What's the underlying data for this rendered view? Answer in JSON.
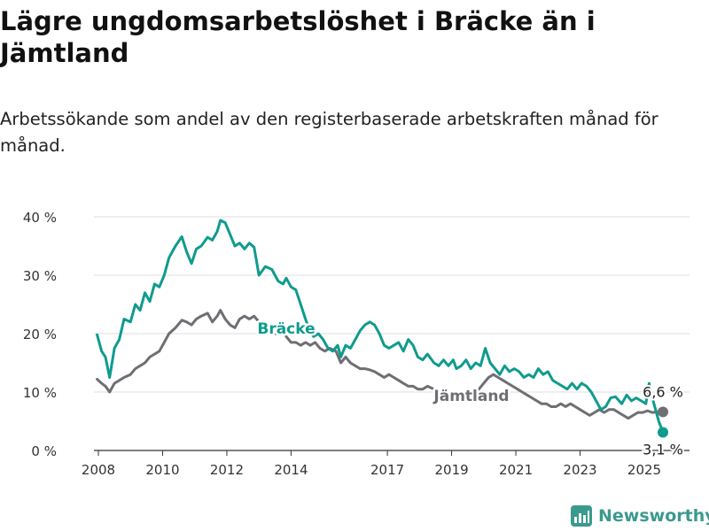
{
  "title": "Lägre ungdomsarbetslöshet i Bräcke än i Jämtland",
  "subtitle": "Arbetssökande som andel av den registerbaserade arbetskraften månad för månad.",
  "brand": {
    "name": "Newsworthy",
    "color": "#3a9a8e",
    "icon": "newsworthy-logo-icon"
  },
  "chart_data": {
    "type": "line",
    "title": "Lägre ungdomsarbetslöshet i Bräcke än i Jämtland",
    "xlabel": "",
    "ylabel": "",
    "xlim": [
      2007.7,
      2025.9
    ],
    "ylim": [
      0,
      40
    ],
    "grid": true,
    "x_ticks": [
      2008,
      2010,
      2012,
      2014,
      2017,
      2019,
      2021,
      2023,
      2025
    ],
    "x_tick_labels": [
      "2008",
      "2010",
      "2012",
      "2014",
      "2017",
      "2019",
      "2021",
      "2023",
      "2025"
    ],
    "y_ticks": [
      0,
      10,
      20,
      30,
      40
    ],
    "y_tick_labels": [
      "0 %",
      "10 %",
      "20 %",
      "30 %",
      "40 %"
    ],
    "series": [
      {
        "name": "Bräcke",
        "color": "#0f9b8e",
        "end_label": "3,1 %",
        "points": [
          [
            2007.96,
            19.8
          ],
          [
            2008.1,
            17
          ],
          [
            2008.22,
            16
          ],
          [
            2008.35,
            12.5
          ],
          [
            2008.5,
            17.5
          ],
          [
            2008.65,
            19
          ],
          [
            2008.8,
            22.5
          ],
          [
            2009.0,
            22
          ],
          [
            2009.15,
            25
          ],
          [
            2009.3,
            24
          ],
          [
            2009.45,
            27
          ],
          [
            2009.6,
            25.5
          ],
          [
            2009.75,
            28.5
          ],
          [
            2009.9,
            28
          ],
          [
            2010.05,
            30
          ],
          [
            2010.2,
            33
          ],
          [
            2010.4,
            35
          ],
          [
            2010.6,
            36.6
          ],
          [
            2010.75,
            34
          ],
          [
            2010.9,
            32
          ],
          [
            2011.05,
            34.5
          ],
          [
            2011.2,
            35
          ],
          [
            2011.4,
            36.5
          ],
          [
            2011.55,
            36
          ],
          [
            2011.7,
            37.5
          ],
          [
            2011.8,
            39.4
          ],
          [
            2011.95,
            39
          ],
          [
            2012.1,
            37
          ],
          [
            2012.25,
            35
          ],
          [
            2012.4,
            35.5
          ],
          [
            2012.55,
            34.5
          ],
          [
            2012.7,
            35.5
          ],
          [
            2012.85,
            34.8
          ],
          [
            2013.0,
            30
          ],
          [
            2013.2,
            31.5
          ],
          [
            2013.4,
            31
          ],
          [
            2013.6,
            29
          ],
          [
            2013.75,
            28.5
          ],
          [
            2013.85,
            29.5
          ],
          [
            2014.0,
            28
          ],
          [
            2014.15,
            27.5
          ],
          [
            2014.3,
            25
          ],
          [
            2014.45,
            22.5
          ],
          [
            2014.55,
            21
          ],
          [
            2014.7,
            19.5
          ],
          [
            2014.85,
            20
          ],
          [
            2015.0,
            19
          ],
          [
            2015.15,
            17.5
          ],
          [
            2015.3,
            17
          ],
          [
            2015.45,
            18
          ],
          [
            2015.55,
            16
          ],
          [
            2015.7,
            18
          ],
          [
            2015.85,
            17.5
          ],
          [
            2016.0,
            19
          ],
          [
            2016.15,
            20.5
          ],
          [
            2016.3,
            21.5
          ],
          [
            2016.45,
            22
          ],
          [
            2016.6,
            21.5
          ],
          [
            2016.75,
            20
          ],
          [
            2016.9,
            18
          ],
          [
            2017.05,
            17.5
          ],
          [
            2017.2,
            18
          ],
          [
            2017.35,
            18.5
          ],
          [
            2017.5,
            17
          ],
          [
            2017.65,
            19
          ],
          [
            2017.8,
            18
          ],
          [
            2017.95,
            16
          ],
          [
            2018.1,
            15.5
          ],
          [
            2018.25,
            16.5
          ],
          [
            2018.45,
            15
          ],
          [
            2018.6,
            14.5
          ],
          [
            2018.75,
            15.5
          ],
          [
            2018.9,
            14.5
          ],
          [
            2019.05,
            15.5
          ],
          [
            2019.15,
            14
          ],
          [
            2019.3,
            14.5
          ],
          [
            2019.45,
            15.5
          ],
          [
            2019.6,
            14
          ],
          [
            2019.75,
            15
          ],
          [
            2019.9,
            14.5
          ],
          [
            2020.05,
            17.5
          ],
          [
            2020.2,
            15
          ],
          [
            2020.35,
            14
          ],
          [
            2020.5,
            13
          ],
          [
            2020.65,
            14.5
          ],
          [
            2020.8,
            13.5
          ],
          [
            2020.95,
            14
          ],
          [
            2021.1,
            13.5
          ],
          [
            2021.25,
            12.5
          ],
          [
            2021.4,
            13
          ],
          [
            2021.55,
            12.5
          ],
          [
            2021.7,
            14
          ],
          [
            2021.85,
            13
          ],
          [
            2022.0,
            13.5
          ],
          [
            2022.15,
            12
          ],
          [
            2022.3,
            11.5
          ],
          [
            2022.45,
            11
          ],
          [
            2022.6,
            10.5
          ],
          [
            2022.75,
            11.5
          ],
          [
            2022.9,
            10.5
          ],
          [
            2023.05,
            11.5
          ],
          [
            2023.2,
            11
          ],
          [
            2023.35,
            10
          ],
          [
            2023.5,
            8.5
          ],
          [
            2023.65,
            7
          ],
          [
            2023.8,
            7.5
          ],
          [
            2023.95,
            9
          ],
          [
            2024.1,
            9.2
          ],
          [
            2024.3,
            8
          ],
          [
            2024.45,
            9.5
          ],
          [
            2024.6,
            8.5
          ],
          [
            2024.75,
            9
          ],
          [
            2024.9,
            8.5
          ],
          [
            2025.05,
            8
          ],
          [
            2025.15,
            11.5
          ],
          [
            2025.25,
            9
          ],
          [
            2025.35,
            7
          ],
          [
            2025.45,
            5
          ],
          [
            2025.58,
            3.1
          ]
        ]
      },
      {
        "name": "Jämtland",
        "color": "#6e6e73",
        "end_label": "6,6 %",
        "points": [
          [
            2007.96,
            12.2
          ],
          [
            2008.1,
            11.5
          ],
          [
            2008.22,
            11
          ],
          [
            2008.35,
            10
          ],
          [
            2008.5,
            11.5
          ],
          [
            2008.65,
            12
          ],
          [
            2008.8,
            12.5
          ],
          [
            2009.0,
            13
          ],
          [
            2009.15,
            14
          ],
          [
            2009.3,
            14.5
          ],
          [
            2009.45,
            15
          ],
          [
            2009.6,
            16
          ],
          [
            2009.75,
            16.5
          ],
          [
            2009.9,
            17
          ],
          [
            2010.05,
            18.5
          ],
          [
            2010.2,
            20
          ],
          [
            2010.4,
            21
          ],
          [
            2010.6,
            22.3
          ],
          [
            2010.75,
            22
          ],
          [
            2010.9,
            21.5
          ],
          [
            2011.05,
            22.5
          ],
          [
            2011.2,
            23
          ],
          [
            2011.4,
            23.5
          ],
          [
            2011.55,
            22
          ],
          [
            2011.7,
            23
          ],
          [
            2011.8,
            24
          ],
          [
            2011.95,
            22.5
          ],
          [
            2012.1,
            21.5
          ],
          [
            2012.25,
            21
          ],
          [
            2012.4,
            22.5
          ],
          [
            2012.55,
            23
          ],
          [
            2012.7,
            22.5
          ],
          [
            2012.85,
            23
          ],
          [
            2013.0,
            22
          ],
          [
            2013.2,
            21
          ],
          [
            2013.4,
            20
          ],
          [
            2013.6,
            20
          ],
          [
            2013.75,
            20.5
          ],
          [
            2013.85,
            19.5
          ],
          [
            2014.0,
            18.5
          ],
          [
            2014.15,
            18.5
          ],
          [
            2014.3,
            18
          ],
          [
            2014.45,
            18.5
          ],
          [
            2014.6,
            18
          ],
          [
            2014.75,
            18.5
          ],
          [
            2014.9,
            17.5
          ],
          [
            2015.05,
            17
          ],
          [
            2015.2,
            17.5
          ],
          [
            2015.4,
            17
          ],
          [
            2015.55,
            15
          ],
          [
            2015.7,
            16
          ],
          [
            2015.85,
            15
          ],
          [
            2016.0,
            14.5
          ],
          [
            2016.15,
            14
          ],
          [
            2016.3,
            14
          ],
          [
            2016.45,
            13.8
          ],
          [
            2016.6,
            13.5
          ],
          [
            2016.75,
            13
          ],
          [
            2016.9,
            12.5
          ],
          [
            2017.05,
            13
          ],
          [
            2017.2,
            12.5
          ],
          [
            2017.35,
            12
          ],
          [
            2017.5,
            11.5
          ],
          [
            2017.65,
            11
          ],
          [
            2017.8,
            11
          ],
          [
            2017.95,
            10.5
          ],
          [
            2018.1,
            10.5
          ],
          [
            2018.25,
            11
          ],
          [
            2018.45,
            10.5
          ],
          [
            2018.6,
            10
          ],
          [
            2018.75,
            9.5
          ],
          [
            2018.9,
            9.5
          ],
          [
            2019.05,
            9
          ],
          [
            2019.2,
            8.8
          ],
          [
            2019.4,
            9
          ],
          [
            2019.55,
            9.5
          ],
          [
            2019.7,
            10
          ],
          [
            2019.85,
            10.5
          ],
          [
            2020.0,
            11.5
          ],
          [
            2020.15,
            12.5
          ],
          [
            2020.3,
            13
          ],
          [
            2020.45,
            12.5
          ],
          [
            2020.6,
            12
          ],
          [
            2020.75,
            11.5
          ],
          [
            2020.9,
            11
          ],
          [
            2021.05,
            10.5
          ],
          [
            2021.2,
            10
          ],
          [
            2021.35,
            9.5
          ],
          [
            2021.5,
            9
          ],
          [
            2021.65,
            8.5
          ],
          [
            2021.8,
            8
          ],
          [
            2021.95,
            8
          ],
          [
            2022.1,
            7.5
          ],
          [
            2022.25,
            7.5
          ],
          [
            2022.4,
            8
          ],
          [
            2022.55,
            7.5
          ],
          [
            2022.7,
            8
          ],
          [
            2022.85,
            7.5
          ],
          [
            2023.0,
            7
          ],
          [
            2023.15,
            6.5
          ],
          [
            2023.3,
            6
          ],
          [
            2023.45,
            6.5
          ],
          [
            2023.6,
            7
          ],
          [
            2023.75,
            6.5
          ],
          [
            2023.9,
            7
          ],
          [
            2024.05,
            7
          ],
          [
            2024.2,
            6.5
          ],
          [
            2024.35,
            6
          ],
          [
            2024.5,
            5.5
          ],
          [
            2024.65,
            6
          ],
          [
            2024.8,
            6.5
          ],
          [
            2024.95,
            6.5
          ],
          [
            2025.1,
            6.8
          ],
          [
            2025.25,
            6.5
          ],
          [
            2025.4,
            6.6
          ],
          [
            2025.58,
            6.6
          ]
        ]
      }
    ]
  }
}
